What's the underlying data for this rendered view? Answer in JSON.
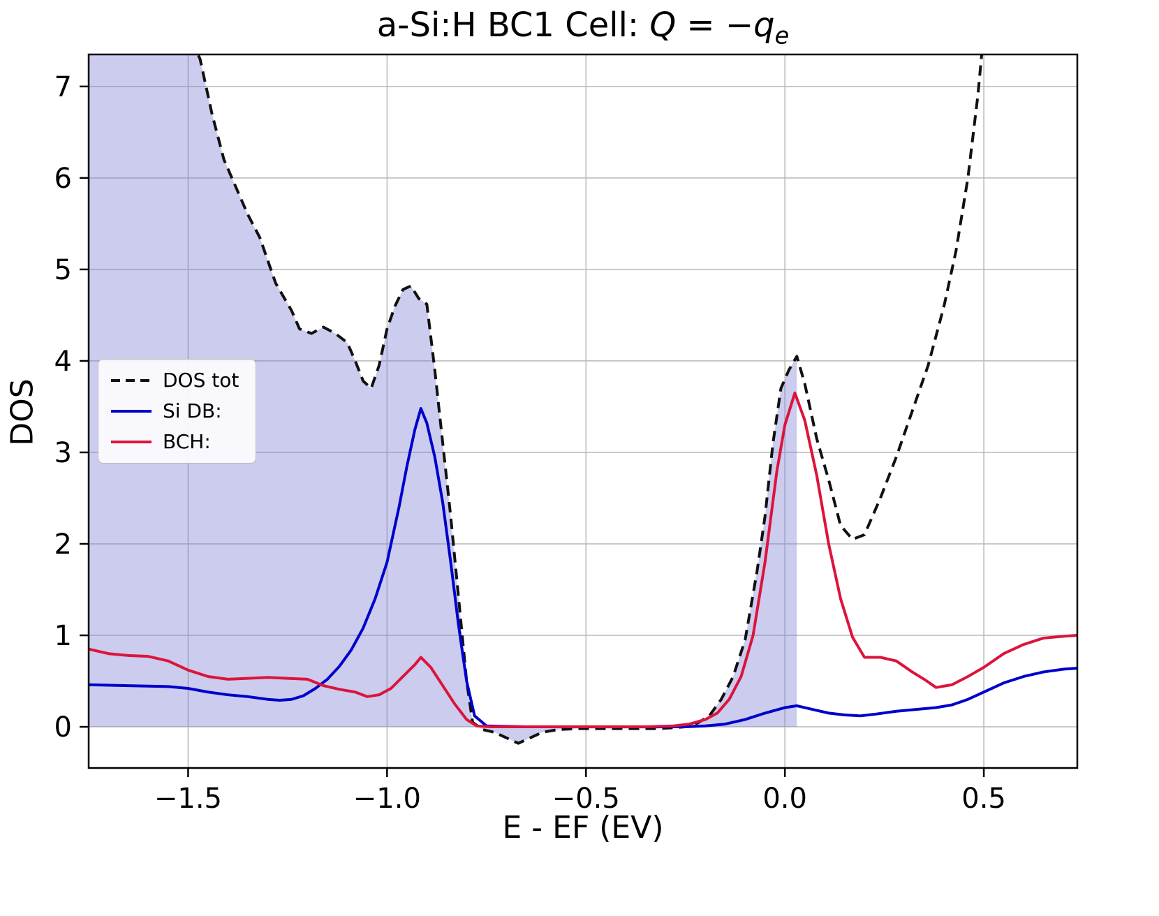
{
  "title": {
    "prefix": "a-Si:H BC1 Cell: ",
    "math_var": "Q",
    "math_eq": " = −",
    "math_sym": "q",
    "math_sub": "e"
  },
  "axes": {
    "xlabel": "E - EF (EV)",
    "ylabel": "DOS"
  },
  "legend": {
    "items": [
      {
        "label": "DOS tot"
      },
      {
        "label": "Si DB:"
      },
      {
        "label": "BCH:"
      }
    ]
  },
  "chart_data": {
    "type": "line",
    "title": "a-Si:H BC1 Cell: Q = −q_e",
    "xlabel": "E - EF (EV)",
    "ylabel": "DOS",
    "xlim": [
      -1.75,
      0.735
    ],
    "ylim": [
      -0.45,
      7.35
    ],
    "xticks": [
      -1.5,
      -1.0,
      -0.5,
      0.0,
      0.5
    ],
    "xtick_labels": [
      "−1.5",
      "−1.0",
      "−0.5",
      "0.0",
      "0.5"
    ],
    "yticks": [
      0,
      1,
      2,
      3,
      4,
      5,
      6,
      7
    ],
    "ytick_labels": [
      "0",
      "1",
      "2",
      "3",
      "4",
      "5",
      "6",
      "7"
    ],
    "grid": true,
    "grid_color": "#b8b8b8",
    "legend_position": "center left",
    "fill_color": "#7a7ad1",
    "fill_opacity": 0.38,
    "fill_to_x": 0.03,
    "series": [
      {
        "name": "DOS tot",
        "color": "#111111",
        "dash": true,
        "x": [
          -1.75,
          -1.55,
          -1.47,
          -1.44,
          -1.41,
          -1.38,
          -1.35,
          -1.32,
          -1.3,
          -1.28,
          -1.26,
          -1.24,
          -1.22,
          -1.19,
          -1.16,
          -1.13,
          -1.1,
          -1.08,
          -1.06,
          -1.04,
          -1.02,
          -1.0,
          -0.98,
          -0.96,
          -0.94,
          -0.92,
          -0.9,
          -0.88,
          -0.86,
          -0.84,
          -0.82,
          -0.8,
          -0.785,
          -0.76,
          -0.73,
          -0.7,
          -0.67,
          -0.64,
          -0.61,
          -0.57,
          -0.52,
          -0.47,
          -0.42,
          -0.37,
          -0.32,
          -0.28,
          -0.25,
          -0.22,
          -0.19,
          -0.16,
          -0.13,
          -0.1,
          -0.07,
          -0.05,
          -0.03,
          -0.01,
          0.01,
          0.03,
          0.05,
          0.08,
          0.11,
          0.14,
          0.17,
          0.2,
          0.24,
          0.28,
          0.32,
          0.36,
          0.4,
          0.43,
          0.46,
          0.485,
          0.5
        ],
        "y": [
          8.6,
          8.1,
          7.3,
          6.7,
          6.2,
          5.9,
          5.6,
          5.35,
          5.1,
          4.85,
          4.7,
          4.55,
          4.35,
          4.3,
          4.37,
          4.3,
          4.2,
          4.0,
          3.78,
          3.7,
          3.95,
          4.35,
          4.6,
          4.78,
          4.82,
          4.68,
          4.62,
          3.9,
          3.1,
          2.3,
          1.4,
          0.5,
          0.05,
          -0.03,
          -0.06,
          -0.12,
          -0.18,
          -0.12,
          -0.06,
          -0.03,
          -0.02,
          -0.02,
          -0.02,
          -0.02,
          -0.02,
          -0.01,
          0.0,
          0.04,
          0.12,
          0.3,
          0.55,
          0.95,
          1.7,
          2.3,
          3.1,
          3.7,
          3.9,
          4.05,
          3.75,
          3.15,
          2.7,
          2.2,
          2.05,
          2.1,
          2.5,
          2.95,
          3.45,
          3.95,
          4.6,
          5.2,
          6.0,
          6.9,
          7.6
        ]
      },
      {
        "name": "Si DB:",
        "color": "#0000cd",
        "dash": false,
        "x": [
          -1.75,
          -1.65,
          -1.55,
          -1.5,
          -1.45,
          -1.4,
          -1.35,
          -1.3,
          -1.27,
          -1.24,
          -1.21,
          -1.18,
          -1.15,
          -1.12,
          -1.09,
          -1.06,
          -1.03,
          -1.0,
          -0.97,
          -0.95,
          -0.93,
          -0.915,
          -0.9,
          -0.88,
          -0.86,
          -0.84,
          -0.82,
          -0.8,
          -0.78,
          -0.75,
          -0.65,
          -0.55,
          -0.45,
          -0.35,
          -0.25,
          -0.2,
          -0.15,
          -0.1,
          -0.05,
          0.0,
          0.03,
          0.07,
          0.11,
          0.15,
          0.19,
          0.23,
          0.28,
          0.33,
          0.38,
          0.42,
          0.46,
          0.5,
          0.55,
          0.6,
          0.65,
          0.7,
          0.735
        ],
        "y": [
          0.46,
          0.45,
          0.44,
          0.42,
          0.38,
          0.35,
          0.33,
          0.3,
          0.29,
          0.3,
          0.34,
          0.42,
          0.52,
          0.66,
          0.84,
          1.08,
          1.4,
          1.8,
          2.4,
          2.85,
          3.25,
          3.48,
          3.32,
          2.95,
          2.45,
          1.8,
          1.1,
          0.5,
          0.12,
          0.01,
          0.0,
          0.0,
          0.0,
          0.0,
          0.0,
          0.01,
          0.03,
          0.08,
          0.15,
          0.21,
          0.23,
          0.19,
          0.15,
          0.13,
          0.12,
          0.14,
          0.17,
          0.19,
          0.21,
          0.24,
          0.3,
          0.38,
          0.48,
          0.55,
          0.6,
          0.63,
          0.64
        ]
      },
      {
        "name": "BCH:",
        "color": "#dc143c",
        "dash": false,
        "x": [
          -1.75,
          -1.7,
          -1.65,
          -1.6,
          -1.55,
          -1.5,
          -1.45,
          -1.4,
          -1.35,
          -1.3,
          -1.25,
          -1.2,
          -1.16,
          -1.12,
          -1.08,
          -1.05,
          -1.02,
          -0.99,
          -0.96,
          -0.93,
          -0.915,
          -0.89,
          -0.86,
          -0.83,
          -0.8,
          -0.775,
          -0.74,
          -0.65,
          -0.55,
          -0.45,
          -0.35,
          -0.28,
          -0.24,
          -0.2,
          -0.17,
          -0.14,
          -0.11,
          -0.08,
          -0.05,
          -0.02,
          0.0,
          0.025,
          0.05,
          0.08,
          0.11,
          0.14,
          0.17,
          0.2,
          0.24,
          0.28,
          0.32,
          0.35,
          0.38,
          0.42,
          0.46,
          0.5,
          0.55,
          0.6,
          0.65,
          0.7,
          0.735
        ],
        "y": [
          0.85,
          0.8,
          0.78,
          0.77,
          0.72,
          0.62,
          0.55,
          0.52,
          0.53,
          0.54,
          0.53,
          0.52,
          0.45,
          0.41,
          0.38,
          0.33,
          0.35,
          0.42,
          0.55,
          0.68,
          0.76,
          0.65,
          0.45,
          0.25,
          0.08,
          0.01,
          0.0,
          0.0,
          0.0,
          0.0,
          0.0,
          0.01,
          0.03,
          0.08,
          0.15,
          0.3,
          0.55,
          1.0,
          1.8,
          2.8,
          3.3,
          3.65,
          3.35,
          2.75,
          2.0,
          1.4,
          0.98,
          0.76,
          0.76,
          0.72,
          0.6,
          0.52,
          0.43,
          0.46,
          0.55,
          0.65,
          0.8,
          0.9,
          0.97,
          0.99,
          1.0
        ]
      }
    ]
  }
}
